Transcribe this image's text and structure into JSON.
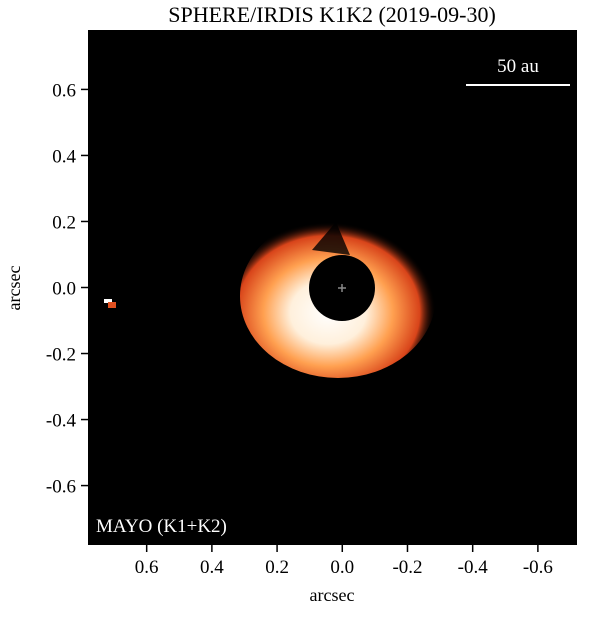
{
  "chart_data": {
    "type": "image",
    "title": "SPHERE/IRDIS K1K2 (2019-09-30)",
    "xlabel": "arcsec",
    "ylabel": "arcsec",
    "xlim": [
      0.78,
      -0.72
    ],
    "ylim": [
      -0.78,
      0.78
    ],
    "xticks": [
      0.6,
      0.4,
      0.2,
      {
        "value": 0,
        "label": "0.0"
      },
      -0.2,
      -0.4,
      -0.6
    ],
    "yticks": [
      -0.6,
      -0.4,
      -0.2,
      {
        "value": 0,
        "label": "0.0"
      },
      0.2,
      0.4,
      0.6
    ],
    "annotations": [
      "50 au",
      "MAYO (K1+K2)"
    ]
  }
}
